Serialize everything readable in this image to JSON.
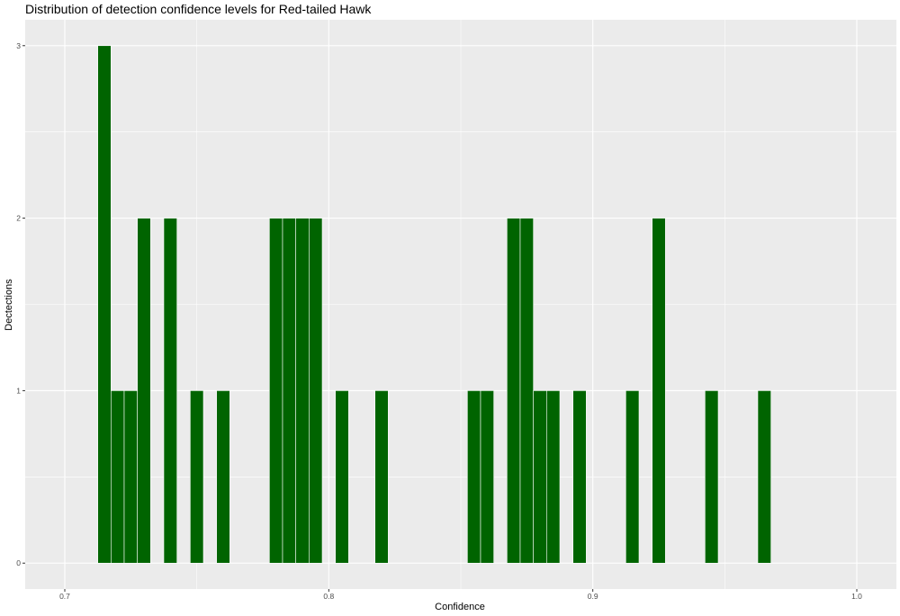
{
  "chart_data": {
    "type": "bar",
    "title": "Distribution of detection confidence levels for Red-tailed Hawk",
    "xlabel": "Confidence",
    "ylabel": "Dectections",
    "xlim": [
      0.685,
      1.015
    ],
    "ylim": [
      -0.15,
      3.15
    ],
    "x_ticks": [
      "0.7",
      "0.8",
      "0.9",
      "1.0"
    ],
    "y_ticks": [
      "0",
      "1",
      "2",
      "3"
    ],
    "bin_width": 0.005,
    "bars": [
      {
        "x": 0.715,
        "count": 3
      },
      {
        "x": 0.72,
        "count": 1
      },
      {
        "x": 0.725,
        "count": 1
      },
      {
        "x": 0.73,
        "count": 2
      },
      {
        "x": 0.74,
        "count": 2
      },
      {
        "x": 0.75,
        "count": 1
      },
      {
        "x": 0.76,
        "count": 1
      },
      {
        "x": 0.78,
        "count": 2
      },
      {
        "x": 0.785,
        "count": 2
      },
      {
        "x": 0.79,
        "count": 2
      },
      {
        "x": 0.795,
        "count": 2
      },
      {
        "x": 0.805,
        "count": 1
      },
      {
        "x": 0.82,
        "count": 1
      },
      {
        "x": 0.855,
        "count": 1
      },
      {
        "x": 0.86,
        "count": 1
      },
      {
        "x": 0.87,
        "count": 2
      },
      {
        "x": 0.875,
        "count": 2
      },
      {
        "x": 0.88,
        "count": 1
      },
      {
        "x": 0.885,
        "count": 1
      },
      {
        "x": 0.895,
        "count": 1
      },
      {
        "x": 0.915,
        "count": 1
      },
      {
        "x": 0.925,
        "count": 2
      },
      {
        "x": 0.945,
        "count": 1
      },
      {
        "x": 0.965,
        "count": 1
      }
    ],
    "bar_color": "#006400",
    "bar_outline": "#ffffff",
    "panel_background": "#ebebeb",
    "grid": true,
    "legend": "none"
  }
}
